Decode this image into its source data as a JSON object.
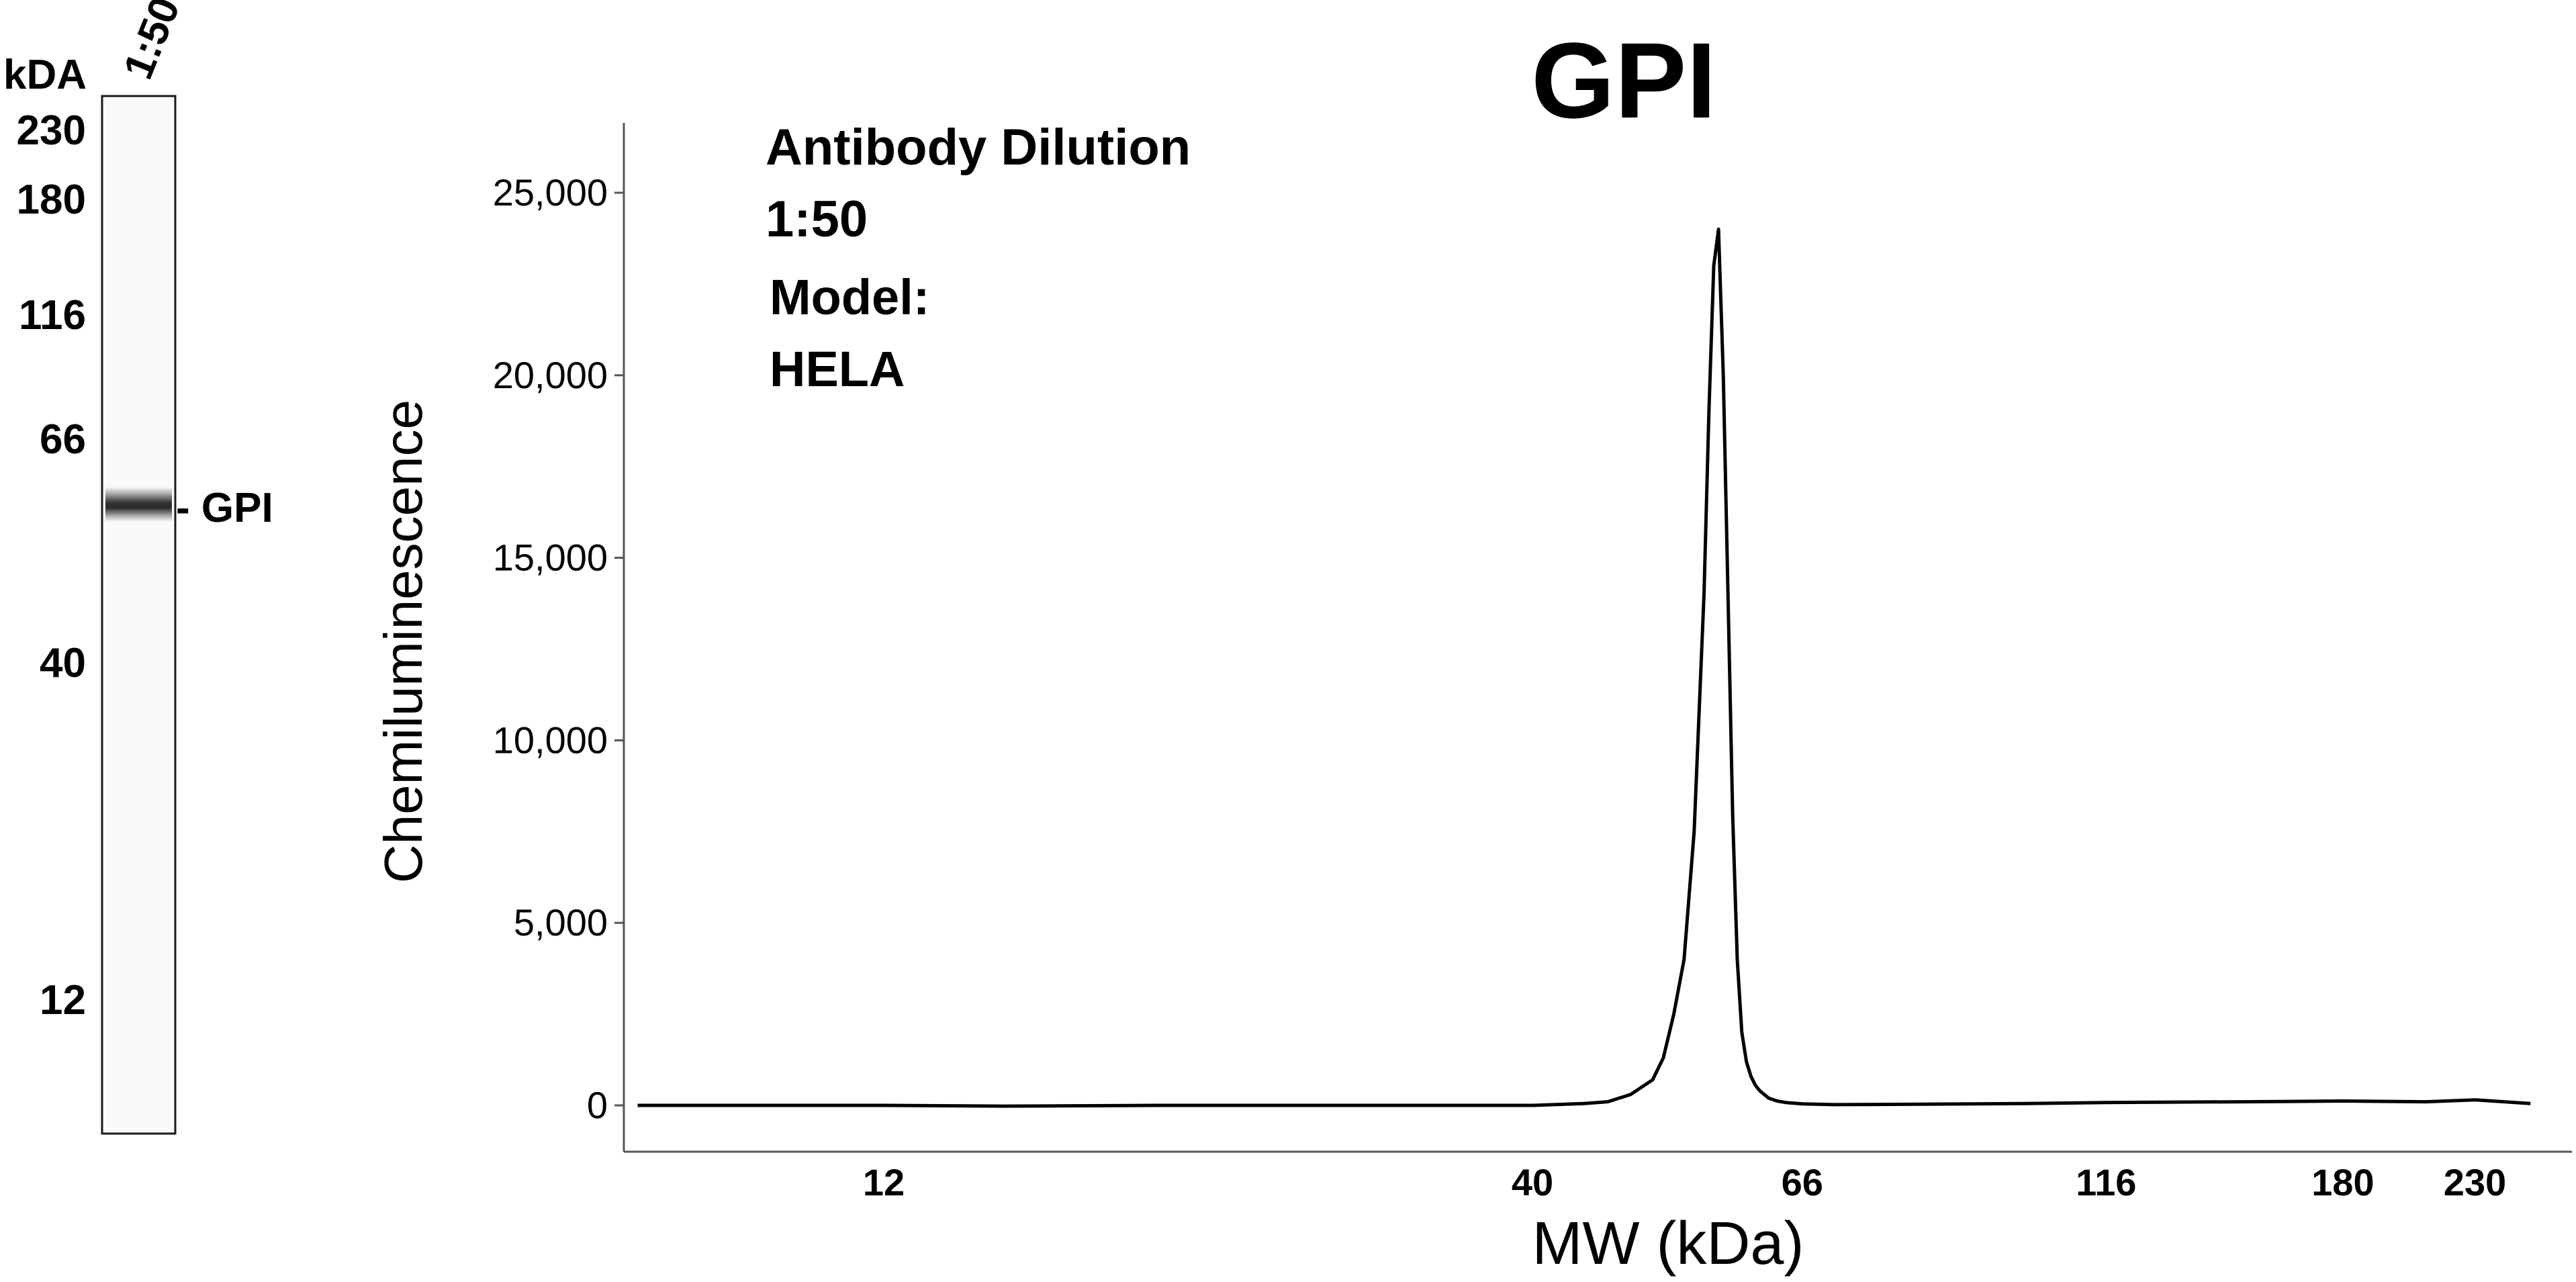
{
  "blot": {
    "unit_label": "kDA",
    "lane_label": "1:50",
    "markers": [
      "230",
      "180",
      "116",
      "66",
      "40",
      "12"
    ],
    "band_label": "- GPI"
  },
  "chart_data": {
    "type": "line",
    "title": "GPI",
    "xlabel": "MW (kDa)",
    "ylabel": "Chemiluminescence",
    "x_scale": "log",
    "x_tick_values": [
      12,
      40,
      66,
      116,
      180,
      230
    ],
    "x_tick_labels": [
      "12",
      "40",
      "66",
      "116",
      "180",
      "230"
    ],
    "y_tick_values": [
      0,
      5000,
      10000,
      15000,
      20000,
      25000
    ],
    "y_tick_labels": [
      "0",
      "5,000",
      "10,000",
      "15,000",
      "20,000",
      "25,000"
    ],
    "annotation": {
      "line1": "Antibody Dilution",
      "line2": "1:50",
      "line3": "Model:",
      "line4": "HELA"
    },
    "series": [
      {
        "x": [
          7.6,
          10,
          12,
          15,
          20,
          25,
          30,
          35,
          40,
          44,
          46,
          48,
          50,
          51,
          52,
          53,
          54,
          55,
          55.5,
          56,
          56.5,
          57,
          57.5,
          58,
          58.5,
          59,
          59.5,
          60,
          60.5,
          61,
          62,
          63,
          64,
          66,
          70,
          80,
          100,
          116,
          150,
          180,
          210,
          230,
          255
        ],
        "y": [
          0,
          0,
          0,
          -20,
          0,
          0,
          0,
          0,
          0,
          50,
          100,
          300,
          700,
          1300,
          2500,
          4000,
          7500,
          14000,
          19000,
          23000,
          24000,
          20000,
          14000,
          8000,
          4000,
          2000,
          1200,
          800,
          550,
          400,
          200,
          120,
          80,
          40,
          20,
          30,
          50,
          80,
          100,
          120,
          100,
          150,
          50
        ]
      }
    ]
  }
}
